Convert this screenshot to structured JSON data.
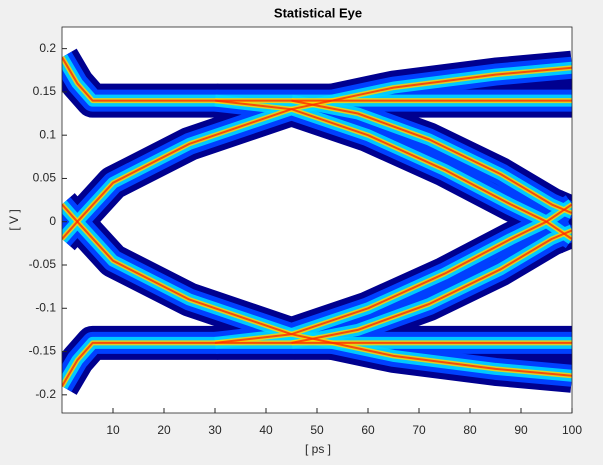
{
  "chart_data": {
    "type": "eye",
    "title": "Statistical Eye",
    "xlabel": "[ ps ]",
    "ylabel": "[ V ]",
    "xlim": [
      0,
      100
    ],
    "ylim": [
      -0.221,
      0.225
    ],
    "xticks": [
      10,
      20,
      30,
      40,
      50,
      60,
      70,
      80,
      90,
      100
    ],
    "yticks": [
      -0.2,
      -0.15,
      -0.1,
      -0.05,
      0,
      0.05,
      0.1,
      0.15,
      0.2
    ],
    "colormap": [
      "#00008f",
      "#0040ff",
      "#00d8ff",
      "#ffd400",
      "#ff2a00"
    ],
    "series": [
      {
        "x": [
          0,
          3,
          6,
          100
        ],
        "values": [
          0.19,
          0.16,
          0.14,
          0.14
        ]
      },
      {
        "x": [
          0,
          3,
          6,
          100
        ],
        "values": [
          -0.19,
          -0.16,
          -0.14,
          -0.14
        ]
      },
      {
        "x": [
          0,
          3,
          10,
          25,
          45,
          65,
          85,
          100
        ],
        "values": [
          -0.02,
          0,
          0.045,
          0.09,
          0.13,
          0.155,
          0.17,
          0.178
        ]
      },
      {
        "x": [
          0,
          3,
          10,
          25,
          45,
          65,
          85,
          100
        ],
        "values": [
          0.02,
          0,
          -0.045,
          -0.09,
          -0.13,
          -0.155,
          -0.17,
          -0.178
        ]
      },
      {
        "x": [
          30,
          45,
          60,
          75,
          88,
          95,
          100
        ],
        "values": [
          0.14,
          0.13,
          0.1,
          0.06,
          0.02,
          0,
          -0.02
        ]
      },
      {
        "x": [
          30,
          45,
          60,
          75,
          88,
          95,
          100
        ],
        "values": [
          -0.14,
          -0.13,
          -0.1,
          -0.06,
          -0.02,
          0,
          0.02
        ]
      },
      {
        "x": [
          45,
          58,
          72,
          86,
          96,
          100
        ],
        "values": [
          0.14,
          0.125,
          0.095,
          0.055,
          0.02,
          0.01
        ]
      },
      {
        "x": [
          45,
          58,
          72,
          86,
          96,
          100
        ],
        "values": [
          -0.14,
          -0.125,
          -0.095,
          -0.055,
          -0.02,
          -0.01
        ]
      }
    ]
  }
}
